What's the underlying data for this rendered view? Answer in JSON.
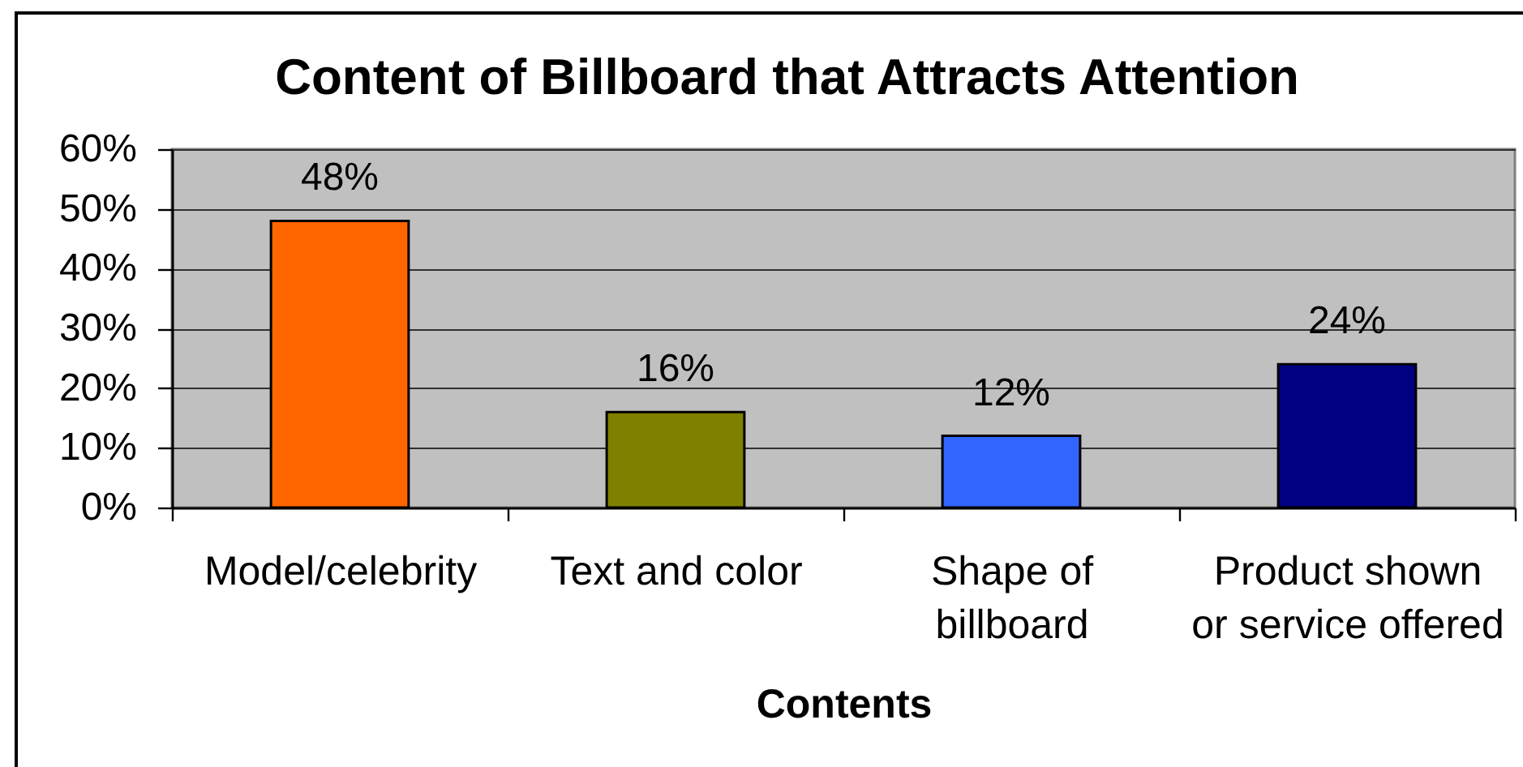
{
  "chart_data": {
    "type": "bar",
    "title": "Content of Billboard that Attracts Attention",
    "xlabel": "Contents",
    "categories": [
      "Model/celebrity",
      "Text and color",
      "Shape of billboard",
      "Product shown or service offered"
    ],
    "values": [
      48,
      16,
      12,
      24
    ],
    "colors": [
      "#ff6600",
      "#808000",
      "#3366ff",
      "#000080"
    ],
    "value_labels": [
      "48%",
      "16%",
      "12%",
      "24%"
    ],
    "ylim": [
      0,
      60
    ],
    "yticks": [
      {
        "value": 0,
        "label": "0%"
      },
      {
        "value": 10,
        "label": "10%"
      },
      {
        "value": 20,
        "label": "20%"
      },
      {
        "value": 30,
        "label": "30%"
      },
      {
        "value": 40,
        "label": "40%"
      },
      {
        "value": 50,
        "label": "50%"
      },
      {
        "value": 60,
        "label": "60%"
      }
    ],
    "grid": "y"
  }
}
